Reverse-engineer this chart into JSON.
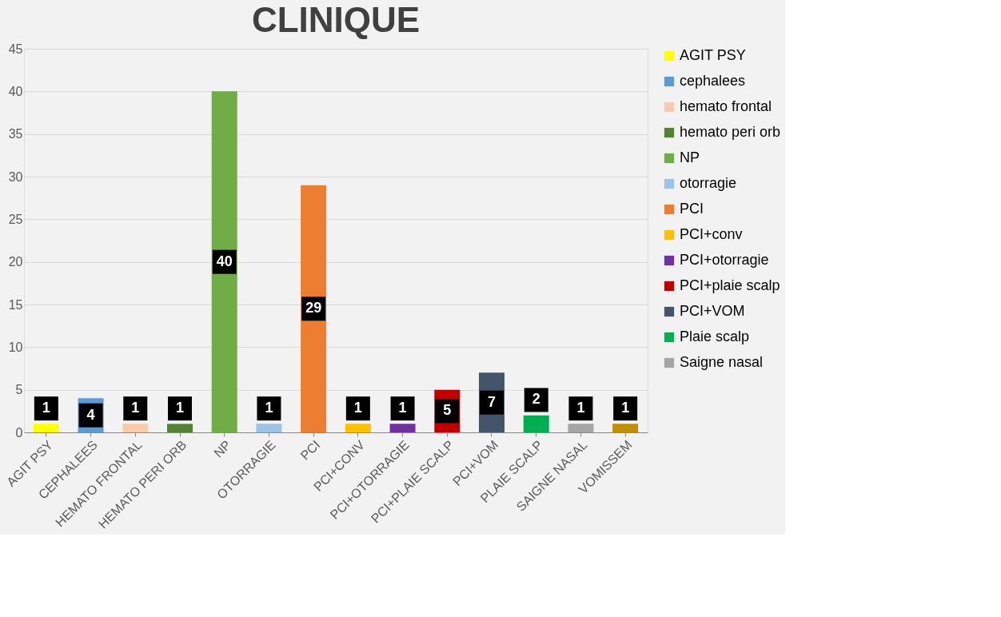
{
  "chart_data": {
    "type": "bar",
    "title": "CLINIQUE",
    "categories": [
      "AGIT PSY",
      "CEPHALEES",
      "HEMATO FRONTAL",
      "HEMATO PERI ORB",
      "NP",
      "OTORRAGIE",
      "PCI",
      "PCI+CONV",
      "PCI+OTORRAGIE",
      "PCI+PLAIE SCALP",
      "PCI+VOM",
      "PLAIE SCALP",
      "SAIGNE NASAL",
      "VOMISSEM"
    ],
    "series": [
      {
        "name": "AGIT PSY",
        "color": "#ffff00",
        "values": [
          1,
          null,
          null,
          null,
          null,
          null,
          null,
          null,
          null,
          null,
          null,
          null,
          null,
          null
        ]
      },
      {
        "name": "cephalees",
        "color": "#5b9bd5",
        "values": [
          null,
          4,
          null,
          null,
          null,
          null,
          null,
          null,
          null,
          null,
          null,
          null,
          null,
          null
        ]
      },
      {
        "name": "hemato frontal",
        "color": "#f8cbad",
        "values": [
          null,
          null,
          1,
          null,
          null,
          null,
          null,
          null,
          null,
          null,
          null,
          null,
          null,
          null
        ]
      },
      {
        "name": "hemato peri orb",
        "color": "#548235",
        "values": [
          null,
          null,
          null,
          1,
          null,
          null,
          null,
          null,
          null,
          null,
          null,
          null,
          null,
          null
        ]
      },
      {
        "name": "NP",
        "color": "#70ad47",
        "values": [
          null,
          null,
          null,
          null,
          40,
          null,
          null,
          null,
          null,
          null,
          null,
          null,
          null,
          null
        ]
      },
      {
        "name": "otorragie",
        "color": "#9dc3e6",
        "values": [
          null,
          null,
          null,
          null,
          null,
          1,
          null,
          null,
          null,
          null,
          null,
          null,
          null,
          null
        ]
      },
      {
        "name": "PCI",
        "color": "#ed7d31",
        "values": [
          null,
          null,
          null,
          null,
          null,
          null,
          29,
          null,
          null,
          null,
          null,
          null,
          null,
          null
        ]
      },
      {
        "name": "PCI+conv",
        "color": "#ffc000",
        "values": [
          null,
          null,
          null,
          null,
          null,
          null,
          null,
          1,
          null,
          null,
          null,
          null,
          null,
          null
        ]
      },
      {
        "name": "PCI+otorragie",
        "color": "#7030a0",
        "values": [
          null,
          null,
          null,
          null,
          null,
          null,
          null,
          null,
          1,
          null,
          null,
          null,
          null,
          null
        ]
      },
      {
        "name": "PCI+plaie scalp",
        "color": "#c00000",
        "values": [
          null,
          null,
          null,
          null,
          null,
          null,
          null,
          null,
          null,
          5,
          null,
          null,
          null,
          null
        ]
      },
      {
        "name": "PCI+VOM",
        "color": "#44546a",
        "values": [
          null,
          null,
          null,
          null,
          null,
          null,
          null,
          null,
          null,
          null,
          7,
          null,
          null,
          null
        ]
      },
      {
        "name": "Plaie scalp",
        "color": "#00b050",
        "values": [
          null,
          null,
          null,
          null,
          null,
          null,
          null,
          null,
          null,
          null,
          null,
          2,
          null,
          null
        ]
      },
      {
        "name": "Saigne nasal",
        "color": "#a5a5a5",
        "values": [
          null,
          null,
          null,
          null,
          null,
          null,
          null,
          null,
          null,
          null,
          null,
          null,
          1,
          null
        ]
      },
      {
        "color": "#bf9000",
        "values": [
          null,
          null,
          null,
          null,
          null,
          null,
          null,
          null,
          null,
          null,
          null,
          null,
          null,
          1
        ]
      }
    ],
    "ylim": [
      0,
      45
    ],
    "yticks": [
      0,
      5,
      10,
      15,
      20,
      25,
      30,
      35,
      40,
      45
    ],
    "grid": "y",
    "legend": "right",
    "data_labels": true
  }
}
